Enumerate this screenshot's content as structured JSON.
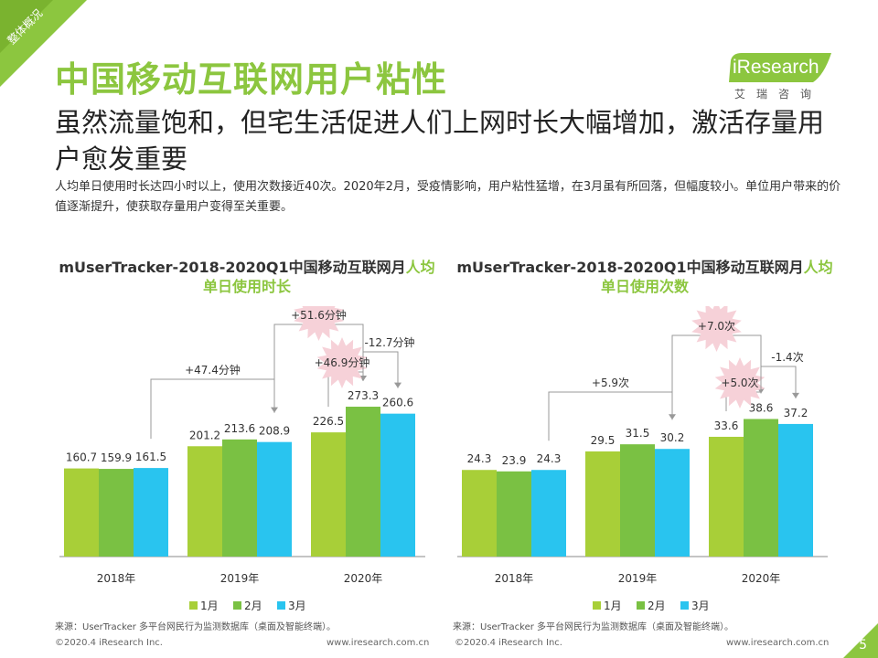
{
  "section_tag": "整体概况",
  "title": "中国移动互联网用户粘性",
  "subtitle": "虽然流量饱和，但宅生活促进人们上网时长大幅增加，激活存量用户愈发重要",
  "description": "人均单日使用时长达四小时以上，使用次数接近40次。2020年2月，受疫情影响，用户粘性猛增，在3月虽有所回落，但幅度较小。单位用户带来的价值逐渐提升，使获取存量用户变得至关重要。",
  "logo": {
    "text": "iResearch",
    "sub": "艾瑞咨询"
  },
  "colors": {
    "jan": "#a8cf38",
    "feb": "#7ac143",
    "mar": "#29c4ef",
    "accent": "#8cc63f"
  },
  "chart_data": [
    {
      "type": "bar",
      "title_prefix": "mUserTracker-2018-2020Q1中国移动互联网月",
      "title_highlight": "人均单日使用时长",
      "categories": [
        "2018年",
        "2019年",
        "2020年"
      ],
      "series": [
        {
          "name": "1月",
          "values": [
            160.7,
            201.2,
            226.5
          ]
        },
        {
          "name": "2月",
          "values": [
            159.9,
            213.6,
            273.3
          ]
        },
        {
          "name": "3月",
          "values": [
            161.5,
            208.9,
            260.6
          ]
        }
      ],
      "annotations": [
        "+47.4分钟",
        "+51.6分钟",
        "+46.9分钟",
        "-12.7分钟"
      ],
      "legend": "bottom",
      "source": "来源：UserTracker 多平台网民行为监测数据库（桌面及智能终端）。"
    },
    {
      "type": "bar",
      "title_prefix": "mUserTracker-2018-2020Q1中国移动互联网月",
      "title_highlight": "人均单日使用次数",
      "categories": [
        "2018年",
        "2019年",
        "2020年"
      ],
      "series": [
        {
          "name": "1月",
          "values": [
            24.3,
            29.5,
            33.6
          ]
        },
        {
          "name": "2月",
          "values": [
            23.9,
            31.5,
            38.6
          ]
        },
        {
          "name": "3月",
          "values": [
            24.3,
            30.2,
            37.2
          ]
        }
      ],
      "annotations": [
        "+5.9次",
        "+7.0次",
        "+5.0次",
        "-1.4次"
      ],
      "legend": "bottom",
      "source": "来源：UserTracker 多平台网民行为监测数据库（桌面及智能终端）。"
    }
  ],
  "footer": {
    "copyright": "©2020.4 iResearch Inc.",
    "url": "www.iresearch.com.cn"
  },
  "page_number": "5"
}
